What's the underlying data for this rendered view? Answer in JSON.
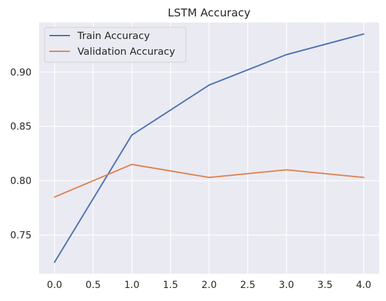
{
  "chart_data": {
    "type": "line",
    "title": "LSTM Accuracy",
    "xlabel": "",
    "ylabel": "",
    "x": [
      0,
      1,
      2,
      3,
      4
    ],
    "xticks": [
      "0.0",
      "0.5",
      "1.0",
      "1.5",
      "2.0",
      "2.5",
      "3.0",
      "3.5",
      "4.0"
    ],
    "yticks": [
      "0.75",
      "0.80",
      "0.85",
      "0.90"
    ],
    "xlim": [
      -0.2,
      4.2
    ],
    "ylim": [
      0.7145,
      0.9455
    ],
    "grid": true,
    "legend_position": "top-left",
    "series": [
      {
        "name": "Train Accuracy",
        "color": "#4c72b0",
        "values": [
          0.725,
          0.842,
          0.888,
          0.916,
          0.935
        ]
      },
      {
        "name": "Validation Accuracy",
        "color": "#dd8452",
        "values": [
          0.785,
          0.815,
          0.803,
          0.81,
          0.803
        ]
      }
    ]
  }
}
